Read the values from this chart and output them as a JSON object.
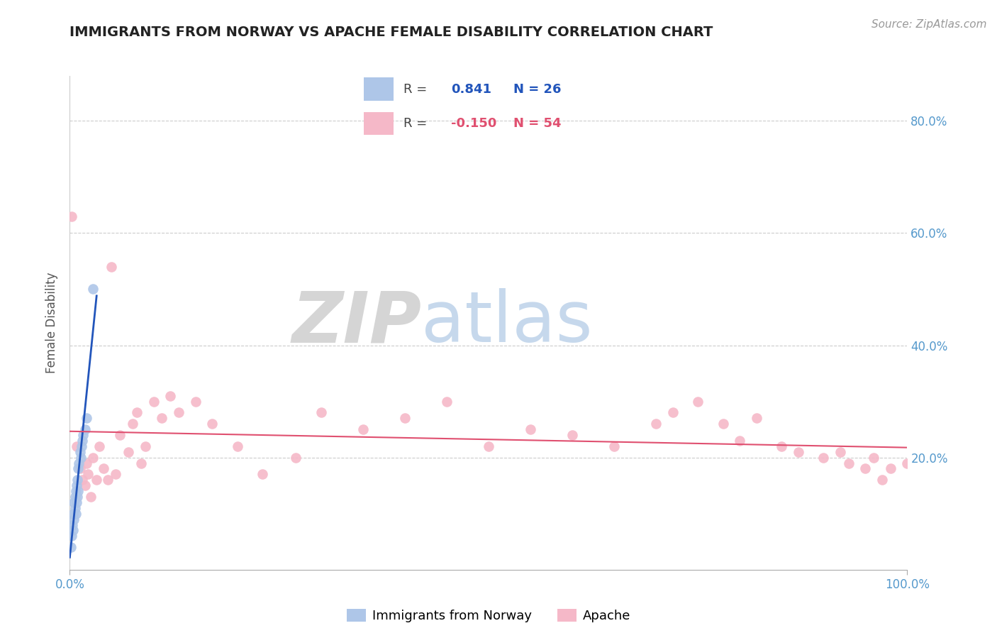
{
  "title": "IMMIGRANTS FROM NORWAY VS APACHE FEMALE DISABILITY CORRELATION CHART",
  "source": "Source: ZipAtlas.com",
  "ylabel": "Female Disability",
  "r_norway": 0.841,
  "n_norway": 26,
  "r_apache": -0.15,
  "n_apache": 54,
  "norway_color": "#aec6e8",
  "apache_color": "#f5b8c8",
  "norway_line_color": "#2255bb",
  "apache_line_color": "#e05070",
  "background_color": "#ffffff",
  "grid_color": "#cccccc",
  "xmin": 0.0,
  "xmax": 1.0,
  "ymin": 0.0,
  "ymax": 0.88,
  "yticks": [
    0.2,
    0.4,
    0.6,
    0.8
  ],
  "norway_x": [
    0.001,
    0.002,
    0.003,
    0.004,
    0.004,
    0.005,
    0.005,
    0.006,
    0.006,
    0.007,
    0.007,
    0.008,
    0.008,
    0.009,
    0.009,
    0.01,
    0.01,
    0.011,
    0.012,
    0.013,
    0.014,
    0.015,
    0.016,
    0.018,
    0.02,
    0.028
  ],
  "norway_y": [
    0.04,
    0.06,
    0.08,
    0.1,
    0.07,
    0.12,
    0.09,
    0.11,
    0.13,
    0.14,
    0.1,
    0.15,
    0.12,
    0.16,
    0.13,
    0.18,
    0.14,
    0.19,
    0.21,
    0.2,
    0.22,
    0.23,
    0.24,
    0.25,
    0.27,
    0.5
  ],
  "apache_x": [
    0.002,
    0.008,
    0.012,
    0.015,
    0.018,
    0.02,
    0.022,
    0.025,
    0.028,
    0.032,
    0.035,
    0.04,
    0.045,
    0.05,
    0.055,
    0.06,
    0.07,
    0.075,
    0.08,
    0.085,
    0.09,
    0.1,
    0.11,
    0.12,
    0.13,
    0.15,
    0.17,
    0.2,
    0.23,
    0.27,
    0.3,
    0.35,
    0.4,
    0.45,
    0.5,
    0.55,
    0.6,
    0.65,
    0.7,
    0.72,
    0.75,
    0.78,
    0.8,
    0.82,
    0.85,
    0.87,
    0.9,
    0.92,
    0.93,
    0.95,
    0.96,
    0.97,
    0.98,
    1.0
  ],
  "apache_y": [
    0.63,
    0.22,
    0.18,
    0.16,
    0.15,
    0.19,
    0.17,
    0.13,
    0.2,
    0.16,
    0.22,
    0.18,
    0.16,
    0.54,
    0.17,
    0.24,
    0.21,
    0.26,
    0.28,
    0.19,
    0.22,
    0.3,
    0.27,
    0.31,
    0.28,
    0.3,
    0.26,
    0.22,
    0.17,
    0.2,
    0.28,
    0.25,
    0.27,
    0.3,
    0.22,
    0.25,
    0.24,
    0.22,
    0.26,
    0.28,
    0.3,
    0.26,
    0.23,
    0.27,
    0.22,
    0.21,
    0.2,
    0.21,
    0.19,
    0.18,
    0.2,
    0.16,
    0.18,
    0.19
  ]
}
